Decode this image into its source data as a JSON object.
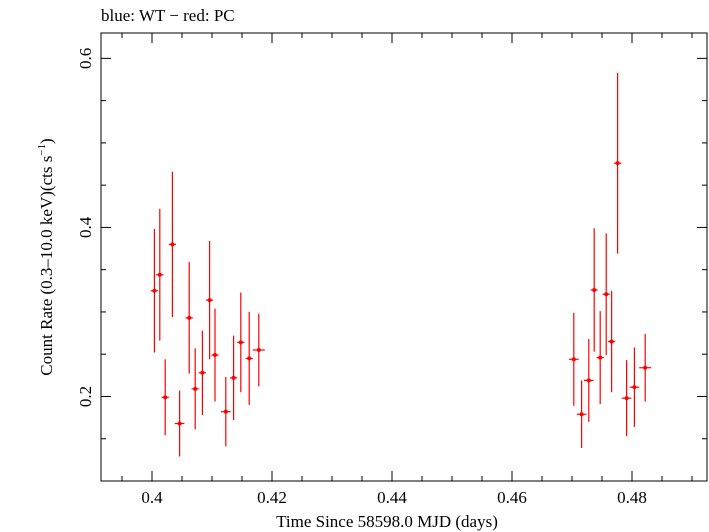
{
  "chart_data": {
    "type": "scatter",
    "title": "blue: WT − red: PC",
    "xlabel": "Time Since 58598.0 MJD (days)",
    "ylabel_main": "Count Rate (0.3–10.0 keV)(cts s",
    "ylabel_sup": "−1",
    "ylabel_close": ")",
    "xlim": [
      0.3915,
      0.4925
    ],
    "ylim": [
      0.1,
      0.63
    ],
    "xticks_major": [
      0.4,
      0.42,
      0.44,
      0.46,
      0.48
    ],
    "xtick_labels": [
      "0.4",
      "0.42",
      "0.44",
      "0.46",
      "0.48"
    ],
    "yticks_major": [
      0.2,
      0.4,
      0.6
    ],
    "ytick_labels": [
      "0.2",
      "0.4",
      "0.6"
    ],
    "grid": false,
    "series": [
      {
        "color": "#ff0000",
        "points": [
          {
            "x": 0.4004,
            "xerr": 0.0006,
            "y": 0.325,
            "yerr": 0.073
          },
          {
            "x": 0.4013,
            "xerr": 0.0006,
            "y": 0.344,
            "yerr": 0.078
          },
          {
            "x": 0.4022,
            "xerr": 0.0006,
            "y": 0.199,
            "yerr": 0.045
          },
          {
            "x": 0.4034,
            "xerr": 0.0006,
            "y": 0.38,
            "yerr": 0.086
          },
          {
            "x": 0.4046,
            "xerr": 0.0008,
            "y": 0.168,
            "yerr": 0.039
          },
          {
            "x": 0.4062,
            "xerr": 0.0006,
            "y": 0.293,
            "yerr": 0.066
          },
          {
            "x": 0.4072,
            "xerr": 0.0006,
            "y": 0.209,
            "yerr": 0.048
          },
          {
            "x": 0.4084,
            "xerr": 0.0006,
            "y": 0.228,
            "yerr": 0.05
          },
          {
            "x": 0.4096,
            "xerr": 0.0006,
            "y": 0.314,
            "yerr": 0.07
          },
          {
            "x": 0.4105,
            "xerr": 0.0006,
            "y": 0.249,
            "yerr": 0.055
          },
          {
            "x": 0.4123,
            "xerr": 0.0008,
            "y": 0.182,
            "yerr": 0.041
          },
          {
            "x": 0.4136,
            "xerr": 0.0006,
            "y": 0.222,
            "yerr": 0.05
          },
          {
            "x": 0.4148,
            "xerr": 0.0006,
            "y": 0.264,
            "yerr": 0.059
          },
          {
            "x": 0.4162,
            "xerr": 0.0006,
            "y": 0.245,
            "yerr": 0.055
          },
          {
            "x": 0.4178,
            "xerr": 0.001,
            "y": 0.255,
            "yerr": 0.043
          },
          {
            "x": 0.4703,
            "xerr": 0.0008,
            "y": 0.244,
            "yerr": 0.055
          },
          {
            "x": 0.4716,
            "xerr": 0.0008,
            "y": 0.179,
            "yerr": 0.04
          },
          {
            "x": 0.4728,
            "xerr": 0.0008,
            "y": 0.219,
            "yerr": 0.049
          },
          {
            "x": 0.4737,
            "xerr": 0.0006,
            "y": 0.326,
            "yerr": 0.073
          },
          {
            "x": 0.4747,
            "xerr": 0.0006,
            "y": 0.246,
            "yerr": 0.055
          },
          {
            "x": 0.4757,
            "xerr": 0.0006,
            "y": 0.321,
            "yerr": 0.072
          },
          {
            "x": 0.4766,
            "xerr": 0.0006,
            "y": 0.265,
            "yerr": 0.06
          },
          {
            "x": 0.4776,
            "xerr": 0.0006,
            "y": 0.476,
            "yerr": 0.107
          },
          {
            "x": 0.4791,
            "xerr": 0.0008,
            "y": 0.198,
            "yerr": 0.045
          },
          {
            "x": 0.4804,
            "xerr": 0.0008,
            "y": 0.211,
            "yerr": 0.047
          },
          {
            "x": 0.4822,
            "xerr": 0.001,
            "y": 0.234,
            "yerr": 0.04
          }
        ]
      }
    ]
  }
}
